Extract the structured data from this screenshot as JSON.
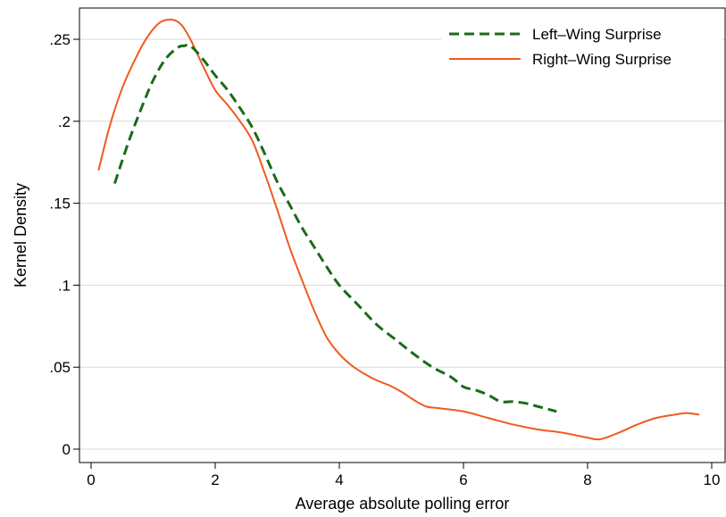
{
  "chart_data": {
    "type": "line",
    "title": "",
    "xlabel": "Average absolute polling error",
    "ylabel": "Kernel Density",
    "xlim": [
      0,
      10
    ],
    "ylim": [
      0,
      0.26
    ],
    "x_ticks": [
      0,
      2,
      4,
      6,
      8,
      10
    ],
    "x_tick_labels": [
      "0",
      "2",
      "4",
      "6",
      "8",
      "10"
    ],
    "y_ticks": [
      0,
      0.05,
      0.1,
      0.15,
      0.2,
      0.25
    ],
    "y_tick_labels": [
      "0",
      ".05",
      ".1",
      ".15",
      ".2",
      ".25"
    ],
    "grid": "horizontal",
    "legend_position": "top-right",
    "series": [
      {
        "name": "Left–Wing Surprise",
        "color": "#1a6b1a",
        "style": "dashed",
        "x": [
          0.38,
          0.6,
          0.8,
          1.0,
          1.2,
          1.4,
          1.5,
          1.6,
          1.8,
          2.0,
          2.2,
          2.4,
          2.6,
          2.8,
          3.0,
          3.2,
          3.4,
          3.6,
          3.8,
          4.0,
          4.3,
          4.6,
          4.9,
          5.2,
          5.5,
          5.8,
          6.0,
          6.2,
          6.4,
          6.6,
          6.8,
          7.0,
          7.2,
          7.5
        ],
        "y": [
          0.162,
          0.187,
          0.207,
          0.225,
          0.238,
          0.245,
          0.246,
          0.246,
          0.238,
          0.228,
          0.219,
          0.208,
          0.196,
          0.18,
          0.163,
          0.149,
          0.135,
          0.123,
          0.111,
          0.1,
          0.088,
          0.076,
          0.067,
          0.058,
          0.05,
          0.044,
          0.038,
          0.036,
          0.033,
          0.029,
          0.029,
          0.028,
          0.026,
          0.023
        ]
      },
      {
        "name": "Right–Wing Surprise",
        "color": "#f05a1e",
        "style": "solid",
        "x": [
          0.12,
          0.3,
          0.5,
          0.7,
          0.9,
          1.1,
          1.3,
          1.45,
          1.6,
          1.8,
          2.0,
          2.2,
          2.4,
          2.6,
          2.8,
          3.0,
          3.2,
          3.4,
          3.6,
          3.8,
          4.0,
          4.2,
          4.4,
          4.6,
          4.8,
          5.0,
          5.2,
          5.4,
          5.6,
          6.0,
          6.4,
          6.8,
          7.2,
          7.6,
          8.0,
          8.2,
          8.5,
          8.8,
          9.1,
          9.4,
          9.6,
          9.8
        ],
        "y": [
          0.17,
          0.197,
          0.22,
          0.237,
          0.251,
          0.26,
          0.262,
          0.259,
          0.25,
          0.234,
          0.219,
          0.21,
          0.2,
          0.188,
          0.168,
          0.146,
          0.123,
          0.103,
          0.084,
          0.068,
          0.058,
          0.051,
          0.046,
          0.042,
          0.039,
          0.035,
          0.03,
          0.026,
          0.025,
          0.023,
          0.019,
          0.015,
          0.012,
          0.01,
          0.007,
          0.006,
          0.01,
          0.015,
          0.019,
          0.021,
          0.022,
          0.021
        ]
      }
    ]
  }
}
